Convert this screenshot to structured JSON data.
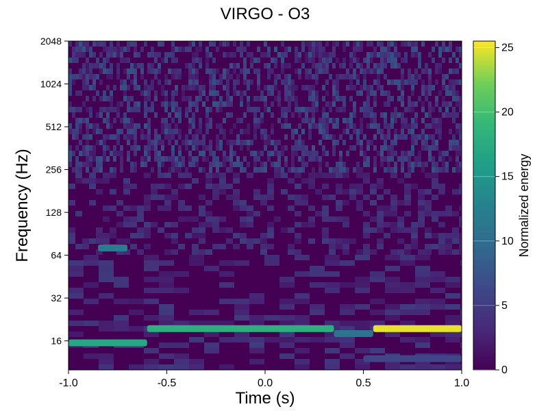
{
  "chart_data": {
    "type": "heatmap",
    "title": "VIRGO - O3",
    "xlabel": "Time (s)",
    "ylabel": "Frequency (Hz)",
    "xlim": [
      -1.0,
      1.0
    ],
    "ylim": [
      10,
      2048
    ],
    "yscale": "log2",
    "xticks": [
      -1.0,
      -0.5,
      0.0,
      0.5,
      1.0
    ],
    "xtick_labels": [
      "-1.0",
      "-0.5",
      "0.0",
      "0.5",
      "1.0"
    ],
    "yticks": [
      16,
      32,
      64,
      128,
      256,
      512,
      1024,
      2048
    ],
    "ytick_labels": [
      "16",
      "32",
      "64",
      "128",
      "256",
      "512",
      "1024",
      "2048"
    ],
    "colormap": "viridis",
    "colorbar": {
      "label": "Normalized energy",
      "range": [
        0,
        25.5
      ],
      "ticks": [
        0,
        5,
        10,
        15,
        20,
        25
      ],
      "tick_labels": [
        "0",
        "5",
        "10",
        "15",
        "20",
        "25"
      ]
    },
    "features": [
      {
        "t_start": -1.0,
        "t_end": -0.6,
        "freq_hz": 15.5,
        "energy": 17
      },
      {
        "t_start": -0.6,
        "t_end": 0.35,
        "freq_hz": 19.5,
        "energy": 18
      },
      {
        "t_start": 0.35,
        "t_end": 0.55,
        "freq_hz": 18.0,
        "energy": 11
      },
      {
        "t_start": 0.55,
        "t_end": 1.0,
        "freq_hz": 19.5,
        "energy": 25
      },
      {
        "t_start": -0.85,
        "t_end": -0.7,
        "freq_hz": 72,
        "energy": 12
      },
      {
        "t_start": 0.5,
        "t_end": 1.0,
        "freq_hz": 12,
        "energy": 6
      }
    ]
  }
}
